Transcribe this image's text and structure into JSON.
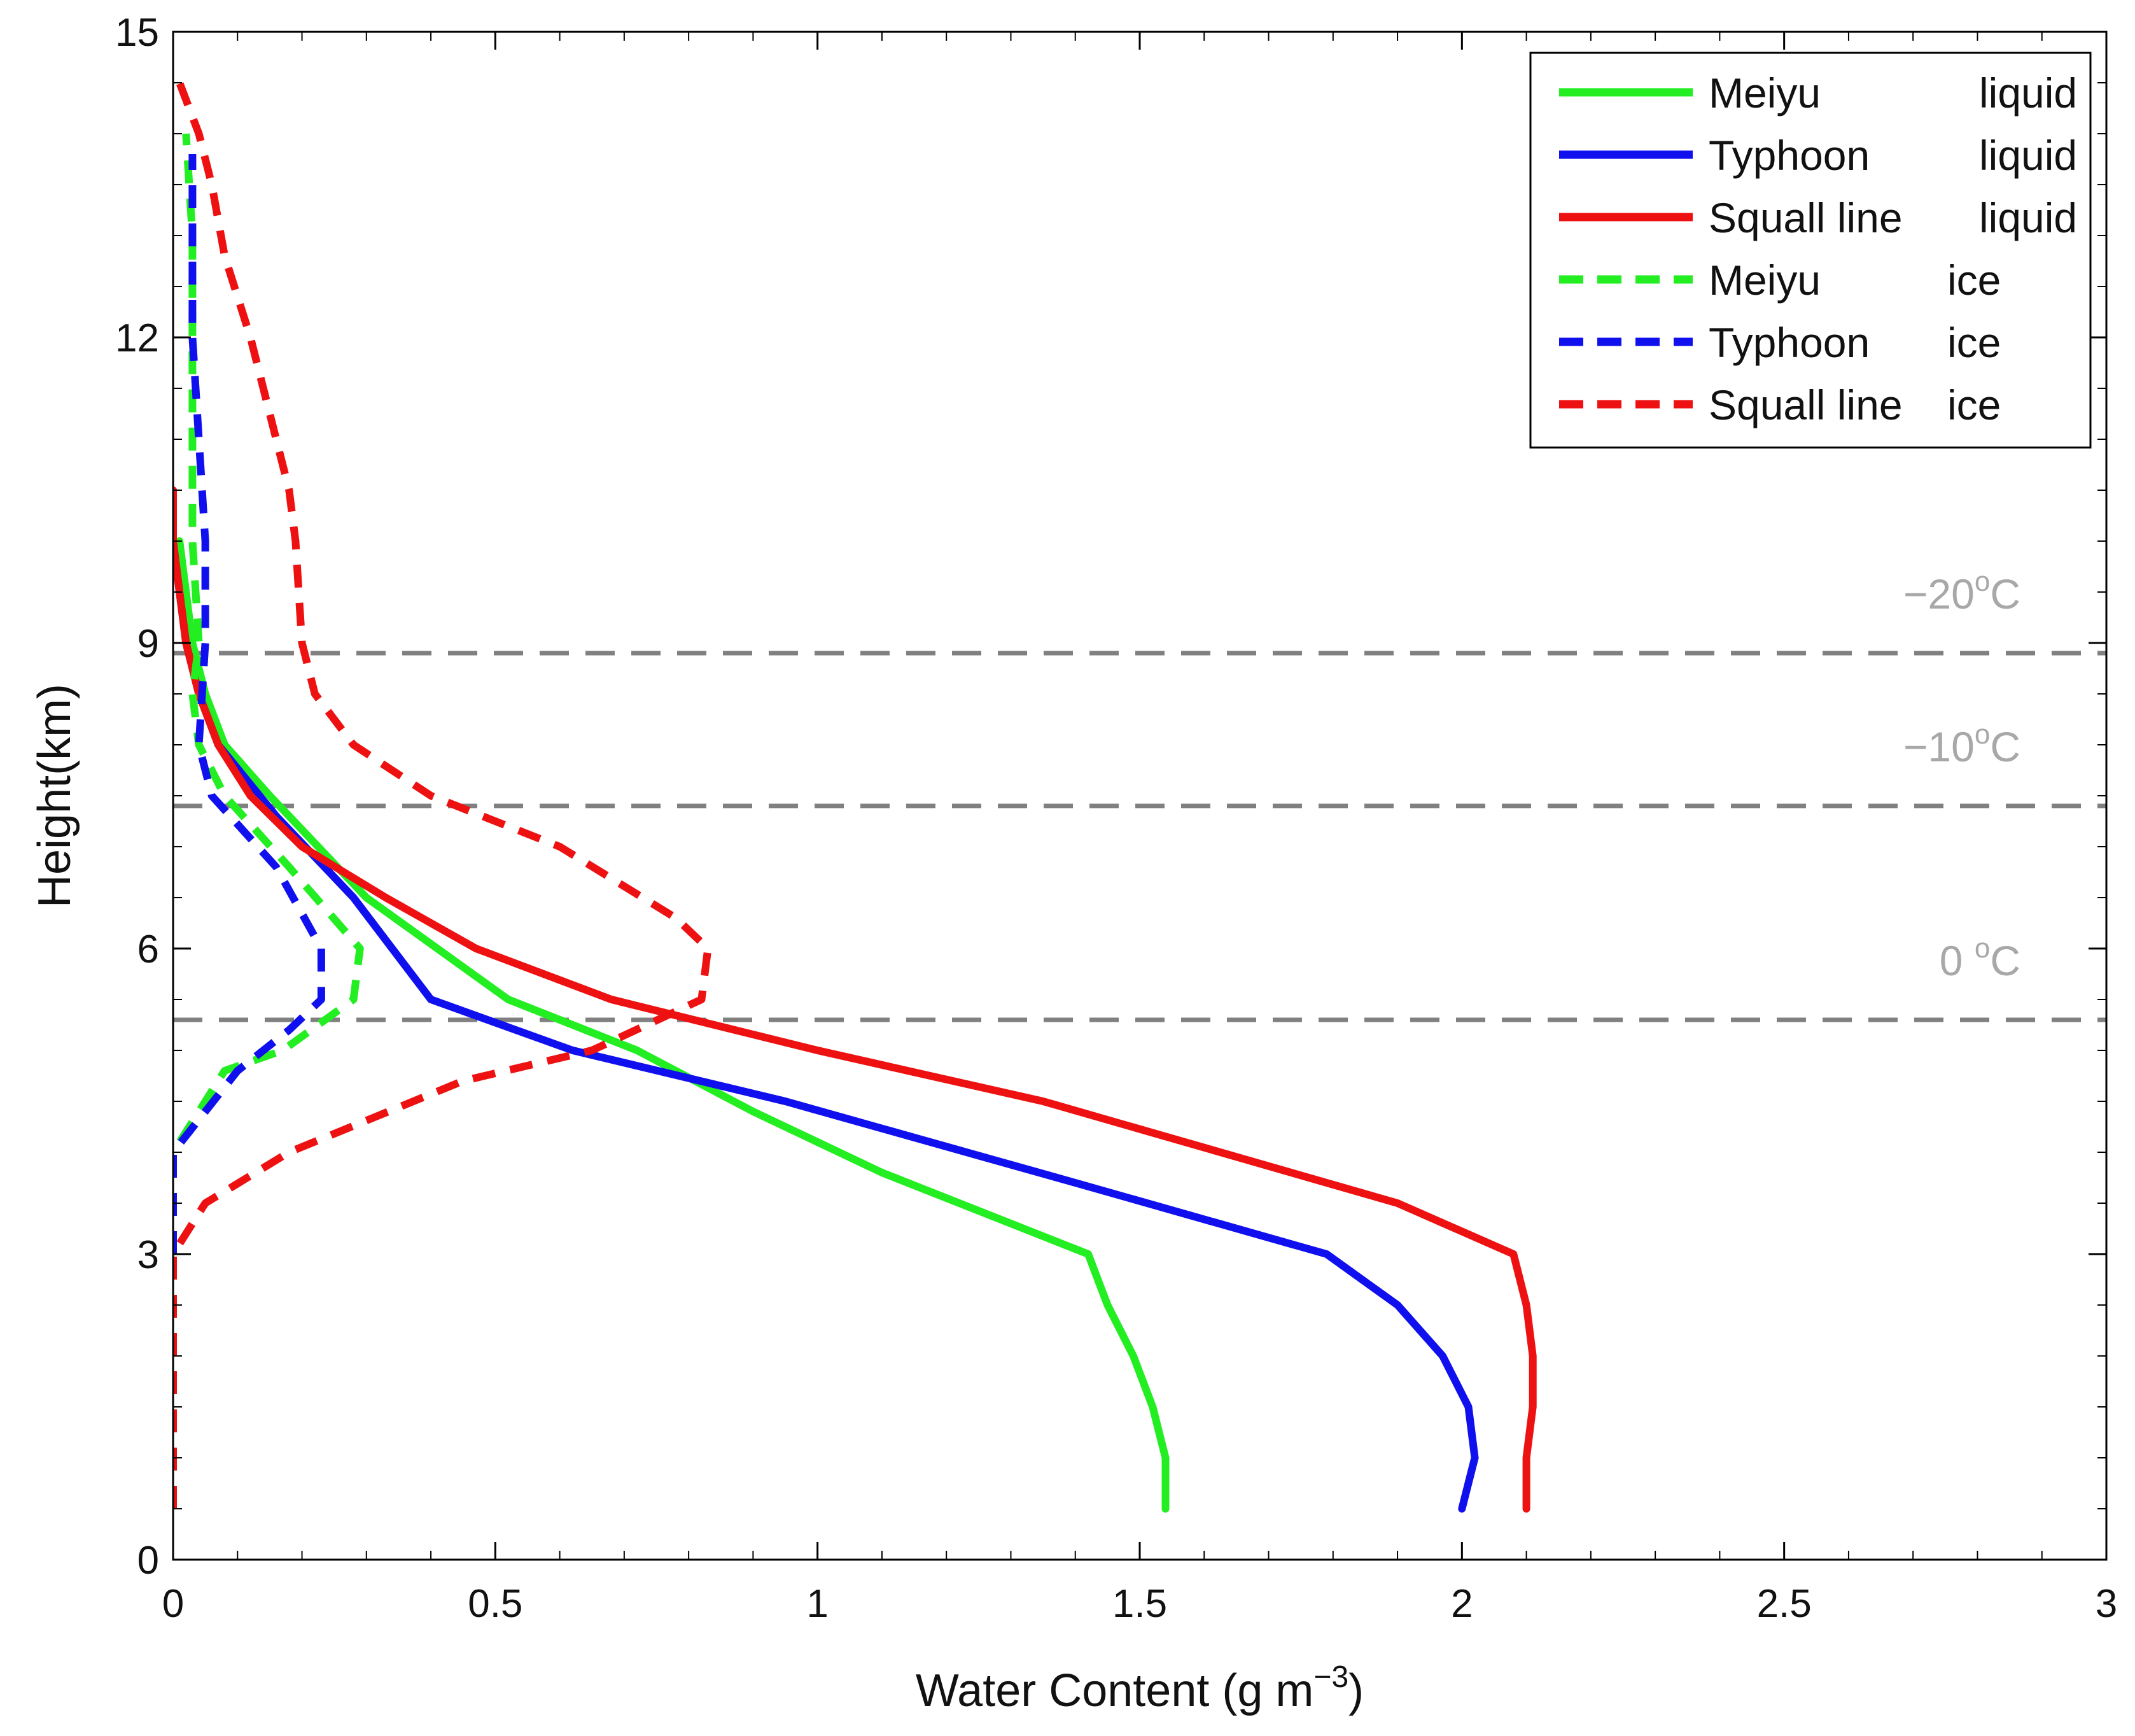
{
  "chart_data": {
    "type": "line",
    "title": "",
    "xlabel": "Water Content (g m",
    "xlabel_exponent": "−3",
    "xlabel_suffix": ")",
    "ylabel": "Height(km)",
    "xlim": [
      0,
      3
    ],
    "ylim": [
      0,
      15
    ],
    "xticks": [
      0,
      0.5,
      1,
      1.5,
      2,
      2.5,
      3
    ],
    "xtick_labels": [
      "0",
      "0.5",
      "1",
      "1.5",
      "2",
      "2.5",
      "3"
    ],
    "yticks": [
      0,
      3,
      6,
      9,
      12,
      15
    ],
    "ytick_labels": [
      "0",
      "3",
      "6",
      "9",
      "12",
      "15"
    ],
    "grid": false,
    "legend_position": "top-right",
    "colors": {
      "meiyu": "#22ee22",
      "typhoon": "#1010ee",
      "squall": "#ee1111",
      "reference": "#808080",
      "axis": "#000000"
    },
    "series": [
      {
        "name": "Meiyu",
        "phase": "liquid",
        "color": "#22ee22",
        "style": "solid",
        "x": [
          1.54,
          1.54,
          1.52,
          1.49,
          1.45,
          1.42,
          1.1,
          0.9,
          0.72,
          0.52,
          0.3,
          0.15,
          0.08,
          0.05,
          0.03,
          0.02,
          0.01
        ],
        "y": [
          0.5,
          1.0,
          1.5,
          2.0,
          2.5,
          3.0,
          3.8,
          4.4,
          5.0,
          5.5,
          6.5,
          7.5,
          8.0,
          8.5,
          9.0,
          9.5,
          10.0
        ]
      },
      {
        "name": "Typhoon",
        "phase": "liquid",
        "color": "#1010ee",
        "style": "solid",
        "x": [
          2.0,
          2.02,
          2.01,
          1.97,
          1.9,
          1.79,
          1.4,
          0.95,
          0.62,
          0.4,
          0.28,
          0.16,
          0.07,
          0.04,
          0.02,
          0.01,
          0.0
        ],
        "y": [
          0.5,
          1.0,
          1.5,
          2.0,
          2.5,
          3.0,
          3.7,
          4.5,
          5.0,
          5.5,
          6.5,
          7.3,
          8.0,
          8.5,
          9.0,
          9.5,
          10.0
        ]
      },
      {
        "name": "Squall line",
        "phase": "liquid",
        "color": "#ee1111",
        "style": "solid",
        "x": [
          2.1,
          2.1,
          2.11,
          2.11,
          2.1,
          2.08,
          1.9,
          1.35,
          1.0,
          0.68,
          0.47,
          0.33,
          0.2,
          0.12,
          0.07,
          0.04,
          0.02,
          0.01,
          0.0,
          0.0
        ],
        "y": [
          0.5,
          1.0,
          1.5,
          2.0,
          2.5,
          3.0,
          3.5,
          4.5,
          5.0,
          5.5,
          6.0,
          6.5,
          7.0,
          7.5,
          8.0,
          8.5,
          9.0,
          9.5,
          10.0,
          10.5
        ]
      },
      {
        "name": "Meiyu",
        "phase": "ice",
        "color": "#22ee22",
        "style": "dashed",
        "x": [
          0.0,
          0.0,
          0.08,
          0.17,
          0.28,
          0.29,
          0.18,
          0.08,
          0.04,
          0.03,
          0.04,
          0.03,
          0.03,
          0.03,
          0.03,
          0.02
        ],
        "y": [
          3.0,
          4.0,
          4.8,
          5.0,
          5.5,
          6.0,
          6.8,
          7.5,
          8.0,
          8.5,
          9.0,
          10.0,
          11.0,
          12.0,
          13.0,
          14.0
        ]
      },
      {
        "name": "Typhoon",
        "phase": "ice",
        "color": "#1010ee",
        "style": "dashed",
        "x": [
          0.0,
          0.0,
          0.1,
          0.18,
          0.23,
          0.23,
          0.16,
          0.06,
          0.04,
          0.05,
          0.05,
          0.04,
          0.03,
          0.03,
          0.03
        ],
        "y": [
          3.0,
          4.0,
          4.8,
          5.2,
          5.5,
          6.0,
          6.8,
          7.5,
          8.0,
          9.0,
          10.0,
          11.0,
          12.0,
          13.0,
          13.8
        ]
      },
      {
        "name": "Squall line",
        "phase": "ice",
        "color": "#ee1111",
        "style": "dashed",
        "x": [
          0.0,
          0.0,
          0.0,
          0.0,
          0.0,
          0.05,
          0.18,
          0.45,
          0.65,
          0.82,
          0.83,
          0.78,
          0.6,
          0.4,
          0.28,
          0.22,
          0.2,
          0.19,
          0.18,
          0.12,
          0.08,
          0.06,
          0.04,
          0.01
        ],
        "y": [
          0.5,
          1.0,
          1.5,
          2.0,
          3.0,
          3.5,
          4.0,
          4.7,
          5.0,
          5.5,
          6.0,
          6.3,
          7.0,
          7.5,
          8.0,
          8.5,
          9.0,
          10.0,
          10.5,
          12.0,
          12.8,
          13.5,
          14.0,
          14.5
        ]
      }
    ],
    "reference_lines": [
      {
        "label": "0 °C",
        "base": "0 ",
        "sup": "o",
        "unit": "C",
        "y": 5.3
      },
      {
        "label": "−10 °C",
        "base": "−10",
        "sup": "o",
        "unit": "C",
        "y": 7.4
      },
      {
        "label": "−20 °C",
        "base": "−20",
        "sup": "o",
        "unit": "C",
        "y": 8.9
      }
    ],
    "legend": [
      {
        "name": "Meiyu",
        "phase": "liquid",
        "color": "#22ee22",
        "style": "solid"
      },
      {
        "name": "Typhoon",
        "phase": "liquid",
        "color": "#1010ee",
        "style": "solid"
      },
      {
        "name": "Squall line",
        "phase": "liquid",
        "color": "#ee1111",
        "style": "solid"
      },
      {
        "name": "Meiyu",
        "phase": "ice",
        "color": "#22ee22",
        "style": "dashed"
      },
      {
        "name": "Typhoon",
        "phase": "ice",
        "color": "#1010ee",
        "style": "dashed"
      },
      {
        "name": "Squall line",
        "phase": "ice",
        "color": "#ee1111",
        "style": "dashed"
      }
    ]
  }
}
